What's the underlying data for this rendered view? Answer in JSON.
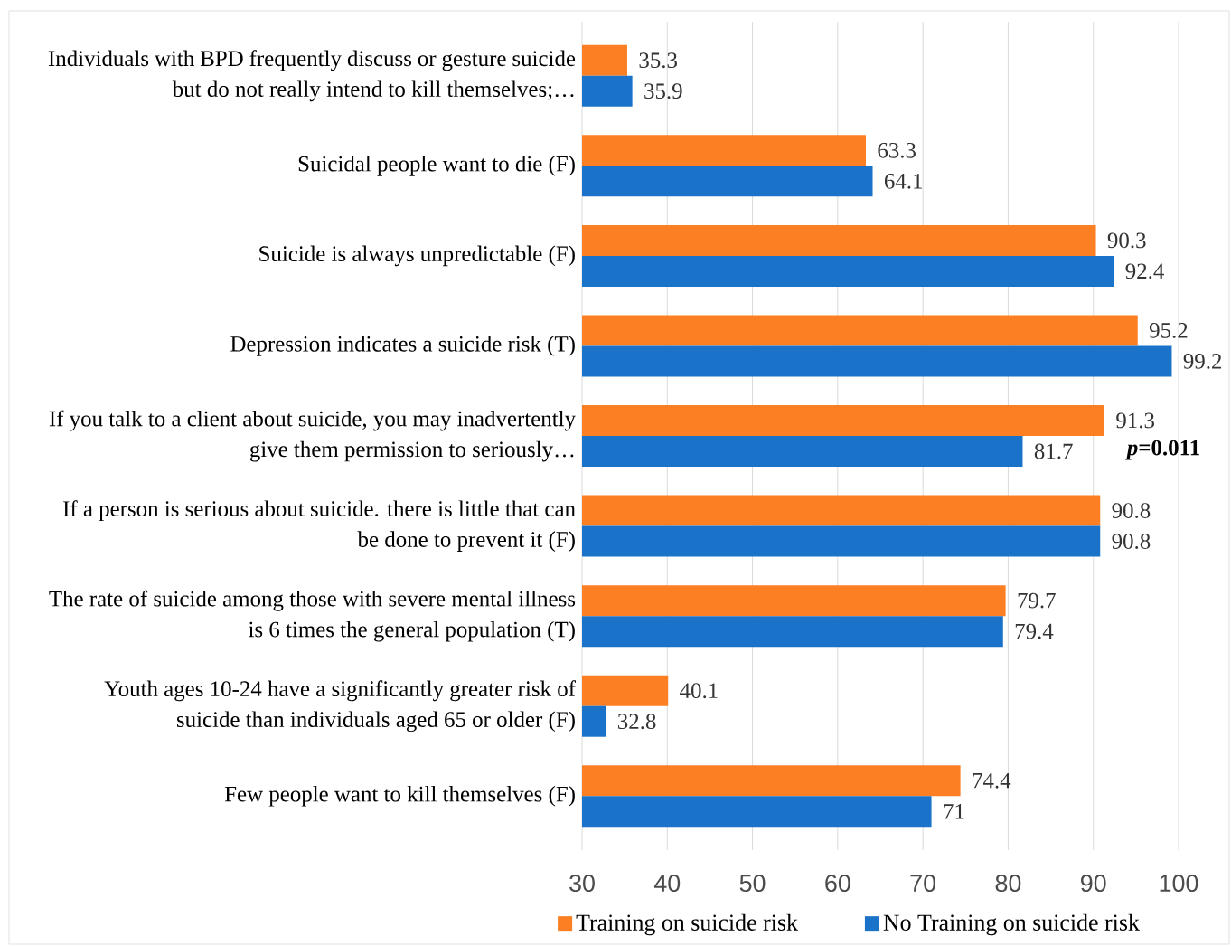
{
  "chart_data": {
    "type": "bar",
    "orientation": "horizontal",
    "categories": [
      "Individuals with BPD frequently discuss or gesture suicide but do not really intend to kill themselves;…",
      "Suicidal people want to die (F)",
      "Suicide is always unpredictable (F)",
      "Depression indicates a suicide risk (T)",
      "If you talk to a client about suicide, you may inadvertently give them permission to seriously…",
      "If a person is serious about suicide. there is little that can be done to prevent it (F)",
      "The rate of suicide among those with severe mental illness is 6 times the general population (T)",
      "Youth ages 10-24 have a significantly greater risk of suicide than individuals aged 65 or older (F)",
      "Few people want to kill themselves (F)"
    ],
    "series": [
      {
        "name": "Training on suicide risk",
        "color": "#fd7f23",
        "values": [
          35.3,
          63.3,
          90.3,
          95.2,
          91.3,
          90.8,
          79.7,
          40.1,
          74.4
        ]
      },
      {
        "name": "No Training on suicide risk",
        "color": "#1a73c9",
        "values": [
          35.9,
          64.1,
          92.4,
          99.2,
          81.7,
          90.8,
          79.4,
          32.8,
          71
        ]
      }
    ],
    "xlim": [
      30,
      100
    ],
    "xticks": [
      30,
      40,
      50,
      60,
      70,
      80,
      90,
      100
    ],
    "grid": "x",
    "legend": "bottom",
    "data_labels": true,
    "annotations": [
      "*p*=0.011"
    ]
  }
}
